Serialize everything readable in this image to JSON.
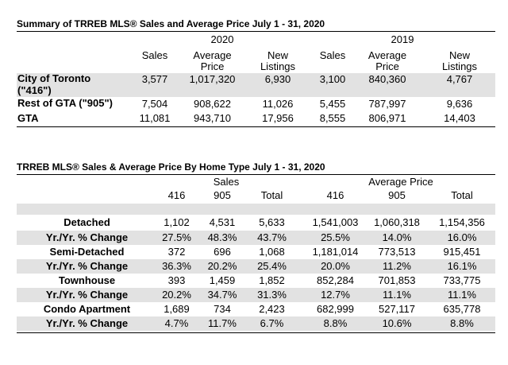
{
  "table1": {
    "title": "Summary of TRREB MLS®  Sales and Average Price July 1 - 31, 2020",
    "year_2020": "2020",
    "year_2019": "2019",
    "col_sales": "Sales",
    "col_avg_line1": "Average",
    "col_avg_line2": "Price",
    "col_new_line1": "New",
    "col_new_line2": "Listings",
    "rows": [
      {
        "label": "City of Toronto",
        "label2": "(\"416\")",
        "s20": "3,577",
        "p20": "1,017,320",
        "n20": "6,930",
        "s19": "3,100",
        "p19": "840,360",
        "n19": "4,767"
      },
      {
        "label": "Rest of GTA (\"905\")",
        "s20": "7,504",
        "p20": "908,622",
        "n20": "11,026",
        "s19": "5,455",
        "p19": "787,997",
        "n19": "9,636"
      },
      {
        "label": "GTA",
        "s20": "11,081",
        "p20": "943,710",
        "n20": "17,956",
        "s19": "8,555",
        "p19": "806,971",
        "n19": "14,403"
      }
    ]
  },
  "table2": {
    "title": "TRREB MLS® Sales & Average Price  By Home Type July 1 - 31, 2020",
    "group_sales": "Sales",
    "group_avg": "Average Price",
    "col_416": "416",
    "col_905": "905",
    "col_total": "Total",
    "rows": [
      {
        "label": "Detached",
        "s416": "1,102",
        "s905": "4,531",
        "stot": "5,633",
        "p416": "1,541,003",
        "p905": "1,060,318",
        "ptot": "1,154,356"
      },
      {
        "label": "Yr./Yr. % Change",
        "s416": "27.5%",
        "s905": "48.3%",
        "stot": "43.7%",
        "p416": "25.5%",
        "p905": "14.0%",
        "ptot": "16.0%"
      },
      {
        "label": "Semi-Detached",
        "s416": "372",
        "s905": "696",
        "stot": "1,068",
        "p416": "1,181,014",
        "p905": "773,513",
        "ptot": "915,451"
      },
      {
        "label": "Yr./Yr. % Change",
        "s416": "36.3%",
        "s905": "20.2%",
        "stot": "25.4%",
        "p416": "20.0%",
        "p905": "11.2%",
        "ptot": "16.1%"
      },
      {
        "label": "Townhouse",
        "s416": "393",
        "s905": "1,459",
        "stot": "1,852",
        "p416": "852,284",
        "p905": "701,853",
        "ptot": "733,775"
      },
      {
        "label": "Yr./Yr. % Change",
        "s416": "20.2%",
        "s905": "34.7%",
        "stot": "31.3%",
        "p416": "12.7%",
        "p905": "11.1%",
        "ptot": "11.1%"
      },
      {
        "label": "Condo Apartment",
        "s416": "1,689",
        "s905": "734",
        "stot": "2,423",
        "p416": "682,999",
        "p905": "527,117",
        "ptot": "635,778"
      },
      {
        "label": "Yr./Yr. % Change",
        "s416": "4.7%",
        "s905": "11.7%",
        "stot": "6.7%",
        "p416": "8.8%",
        "p905": "10.6%",
        "ptot": "8.8%"
      }
    ]
  }
}
